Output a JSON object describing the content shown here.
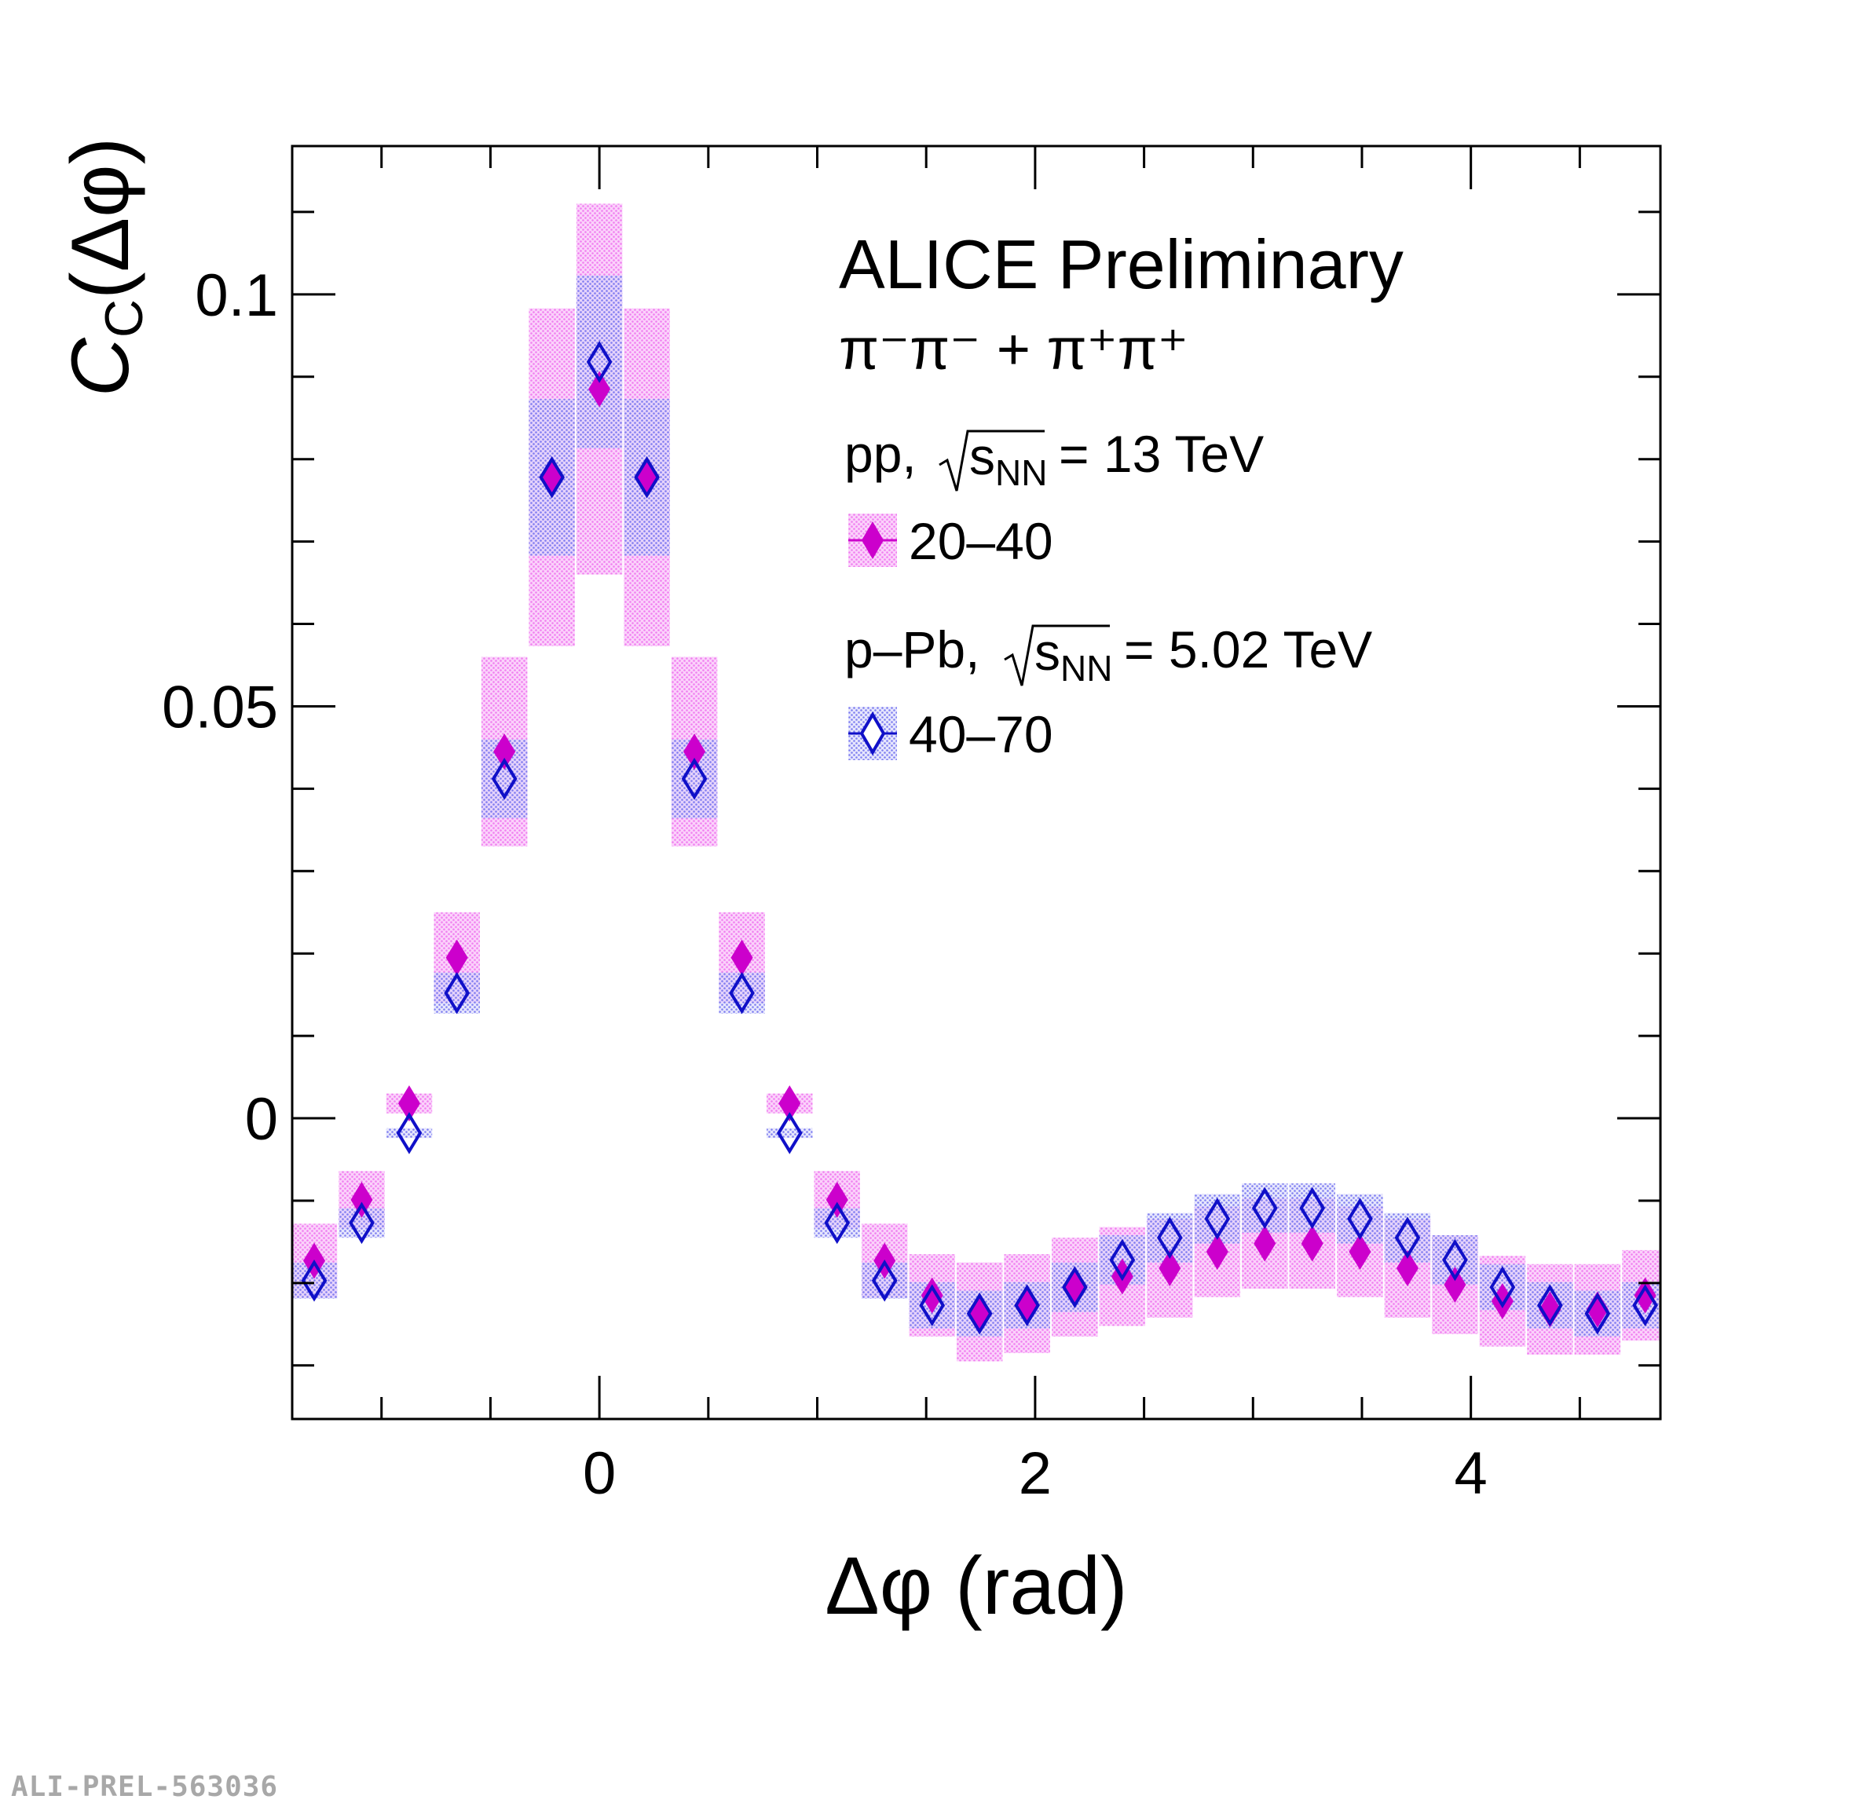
{
  "chart_data": {
    "type": "scatter",
    "title": "ALICE Preliminary",
    "subtitle": "π⁻π⁻ + π⁺π⁺",
    "xlabel": "Δφ (rad)",
    "ylabel_main": "C",
    "ylabel_sub": "C",
    "ylabel_tail": "(Δφ)",
    "xlim": [
      -1.41,
      4.87
    ],
    "ylim": [
      -0.0365,
      0.118
    ],
    "x_ticks": [
      0,
      2,
      4
    ],
    "x_tick_labels": [
      "0",
      "2",
      "4"
    ],
    "y_ticks": [
      0,
      0.05,
      0.1
    ],
    "y_tick_labels": [
      "0",
      "0.05",
      "0.1"
    ],
    "bin_width": 0.218,
    "x": [
      -1.309,
      -1.091,
      -0.873,
      -0.654,
      -0.436,
      -0.218,
      0.0,
      0.218,
      0.436,
      0.654,
      0.873,
      1.091,
      1.309,
      1.527,
      1.745,
      1.963,
      2.182,
      2.4,
      2.618,
      2.836,
      3.054,
      3.272,
      3.491,
      3.709,
      3.927,
      4.145,
      4.363,
      4.581,
      4.8
    ],
    "series": [
      {
        "name": "pp 20–40",
        "marker": "filled-diamond",
        "color": "#cc00cc",
        "box_color": "#f28ff2",
        "values": [
          -0.0173,
          -0.0099,
          0.0018,
          0.0195,
          0.0445,
          0.0778,
          0.0885,
          0.0778,
          0.0445,
          0.0195,
          0.0018,
          -0.0099,
          -0.0173,
          -0.0215,
          -0.0235,
          -0.0225,
          -0.0205,
          -0.0192,
          -0.0182,
          -0.0162,
          -0.0152,
          -0.0152,
          -0.0162,
          -0.0182,
          -0.0202,
          -0.0222,
          -0.0232,
          -0.0232,
          -0.0215
        ],
        "sys": [
          0.0045,
          0.0035,
          0.0012,
          0.0055,
          0.0115,
          0.0205,
          0.0225,
          0.0205,
          0.0115,
          0.0055,
          0.0012,
          0.0035,
          0.0045,
          0.005,
          0.006,
          0.006,
          0.006,
          0.006,
          0.006,
          0.0055,
          0.0055,
          0.0055,
          0.0055,
          0.006,
          0.006,
          0.0055,
          0.0055,
          0.0055,
          0.0055
        ]
      },
      {
        "name": "p–Pb 40–70",
        "marker": "open-diamond",
        "color": "#1010c8",
        "box_color": "#8c8cf0",
        "values": [
          -0.0197,
          -0.0127,
          -0.0018,
          0.0152,
          0.0412,
          0.0778,
          0.0918,
          0.0778,
          0.0412,
          0.0152,
          -0.0018,
          -0.0127,
          -0.0197,
          -0.0227,
          -0.0237,
          -0.0227,
          -0.0205,
          -0.0172,
          -0.0145,
          -0.0122,
          -0.0109,
          -0.0109,
          -0.0122,
          -0.0145,
          -0.0172,
          -0.0205,
          -0.0227,
          -0.0237,
          -0.0227
        ],
        "sys": [
          0.0022,
          0.0018,
          0.0006,
          0.0025,
          0.0048,
          0.0095,
          0.0105,
          0.0095,
          0.0048,
          0.0025,
          0.0006,
          0.0018,
          0.0022,
          0.0028,
          0.0028,
          0.0028,
          0.003,
          0.003,
          0.003,
          0.003,
          0.003,
          0.003,
          0.003,
          0.003,
          0.003,
          0.0028,
          0.0028,
          0.0028,
          0.0028
        ]
      }
    ],
    "legend": {
      "pp_header_prefix": "pp,",
      "pp_header_energy": "= 13 TeV",
      "pp_entry": "20–40",
      "ppb_header_prefix": "p–Pb,",
      "ppb_header_energy": "= 5.02 TeV",
      "ppb_entry": "40–70",
      "sqrt_s": "s",
      "sqrt_sub": "NN"
    }
  },
  "watermark": "ALI-PREL-563036"
}
